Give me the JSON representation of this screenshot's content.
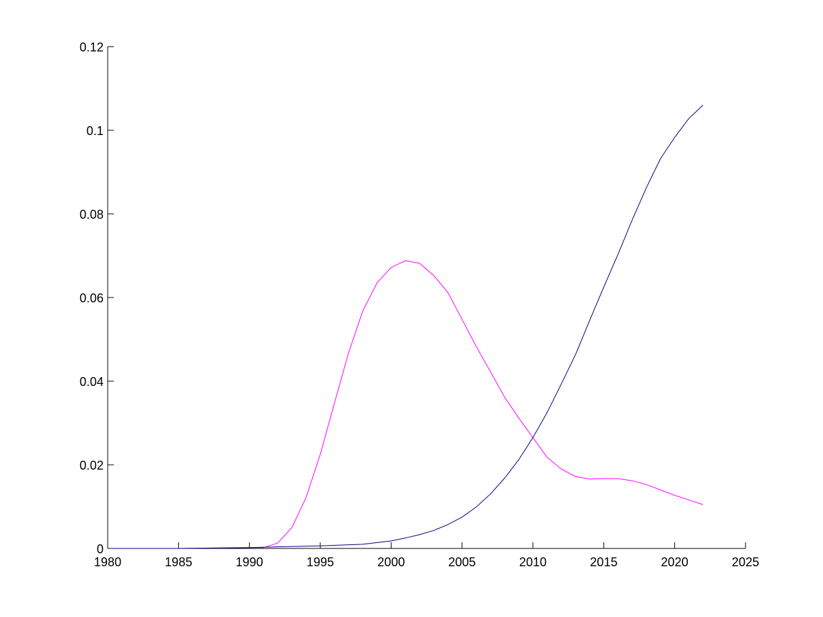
{
  "chart_data": {
    "type": "line",
    "title": "",
    "xlabel": "",
    "ylabel": "",
    "xlim": [
      1980,
      2025
    ],
    "ylim": [
      0,
      0.12
    ],
    "grid": false,
    "x_ticks": [
      1980,
      1985,
      1990,
      1995,
      2000,
      2005,
      2010,
      2015,
      2020,
      2025
    ],
    "y_ticks": [
      0,
      0.02,
      0.04,
      0.06,
      0.08,
      0.1,
      0.12
    ],
    "x_tick_labels": [
      "1980",
      "1985",
      "1990",
      "1995",
      "2000",
      "2005",
      "2010",
      "2015",
      "2020",
      "2025"
    ],
    "y_tick_labels": [
      "0",
      "0.02",
      "0.04",
      "0.06",
      "0.08",
      "0.1",
      "0.12"
    ],
    "series": [
      {
        "color": "#ff00ff",
        "x": [
          1980,
          1985,
          1990,
          1991,
          1992,
          1993,
          1994,
          1995,
          1996,
          1997,
          1998,
          1999,
          2000,
          2001,
          2002,
          2003,
          2004,
          2005,
          2006,
          2007,
          2008,
          2009,
          2010,
          2011,
          2012,
          2013,
          2014,
          2015,
          2016,
          2017,
          2018,
          2019,
          2020,
          2021,
          2022
        ],
        "y": [
          0,
          0,
          0.0002,
          0.0002,
          0.0013,
          0.005,
          0.0122,
          0.0225,
          0.0348,
          0.0468,
          0.0568,
          0.0635,
          0.0672,
          0.0688,
          0.0682,
          0.0653,
          0.0612,
          0.0548,
          0.0483,
          0.0423,
          0.0362,
          0.0312,
          0.0265,
          0.0218,
          0.019,
          0.0172,
          0.0166,
          0.0167,
          0.0167,
          0.0162,
          0.0153,
          0.014,
          0.0127,
          0.0116,
          0.0105
        ]
      },
      {
        "color": "#000080",
        "x": [
          1980,
          1985,
          1990,
          1992,
          1995,
          1998,
          2000,
          2001,
          2002,
          2003,
          2004,
          2005,
          2006,
          2007,
          2008,
          2009,
          2010,
          2011,
          2012,
          2013,
          2014,
          2015,
          2016,
          2017,
          2018,
          2019,
          2020,
          2021,
          2022
        ],
        "y": [
          0,
          0,
          0.0002,
          0.0004,
          0.0006,
          0.001,
          0.0018,
          0.0025,
          0.0033,
          0.0043,
          0.0057,
          0.0075,
          0.0099,
          0.013,
          0.0168,
          0.0212,
          0.0265,
          0.0325,
          0.0393,
          0.0463,
          0.0545,
          0.0625,
          0.0703,
          0.0785,
          0.0862,
          0.0932,
          0.0983,
          0.1028,
          0.106
        ]
      }
    ]
  }
}
